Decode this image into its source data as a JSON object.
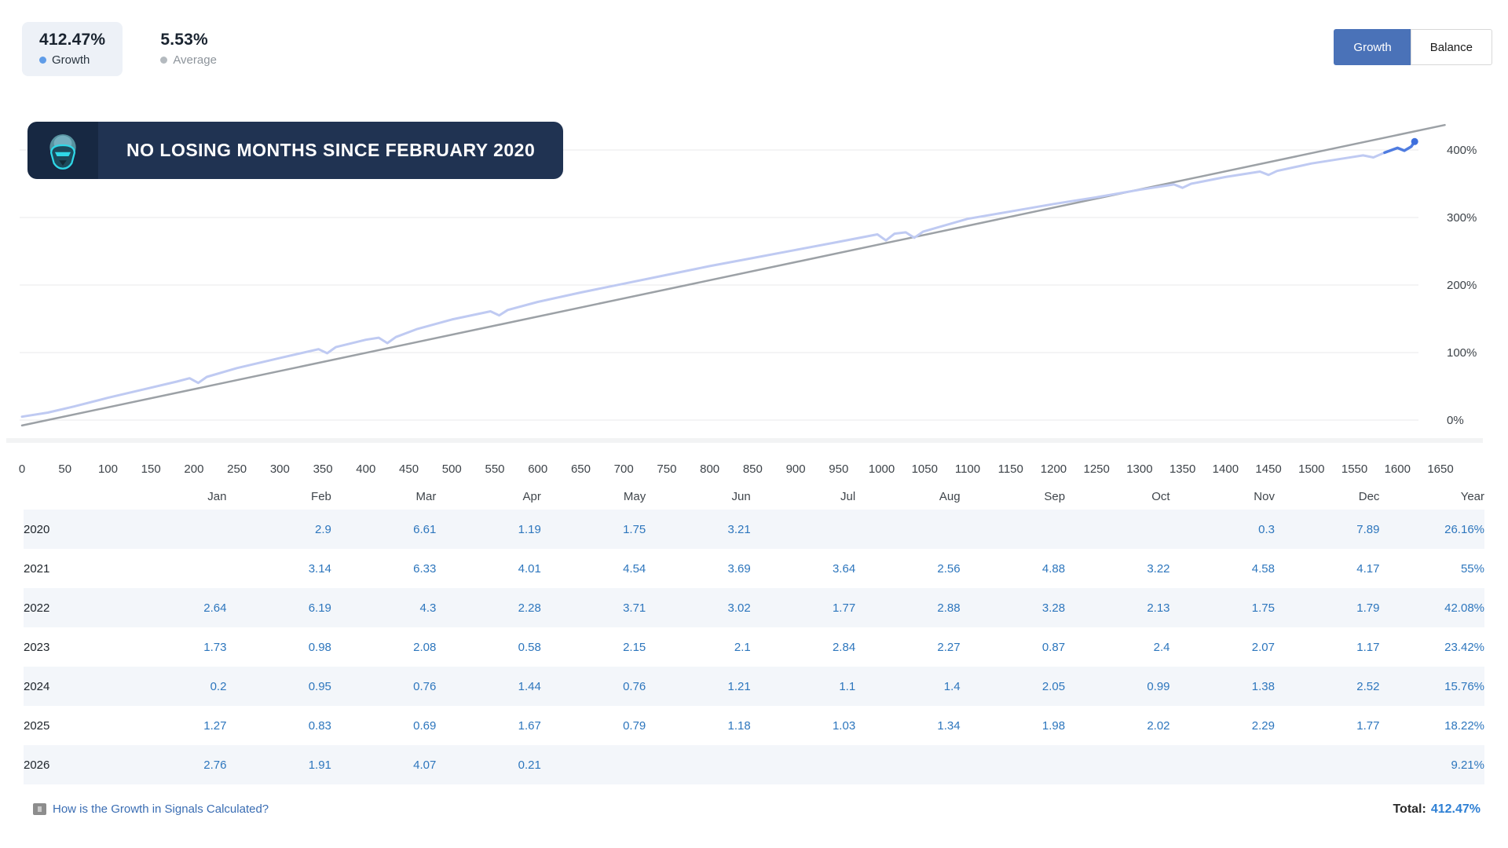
{
  "stats": {
    "growth": {
      "value": "412.47%",
      "label": "Growth"
    },
    "average": {
      "value": "5.53%",
      "label": "Average"
    }
  },
  "toggle": {
    "growth": "Growth",
    "balance": "Balance"
  },
  "banner": {
    "text": "NO LOSING MONTHS SINCE FEBRUARY 2020"
  },
  "chart_data": {
    "type": "line",
    "title": "Signal growth curve",
    "xlim": [
      0,
      1650
    ],
    "ylim": [
      0,
      440
    ],
    "grid": true,
    "y_axis_side": "right",
    "x_ticks": [
      0,
      50,
      100,
      150,
      200,
      250,
      300,
      350,
      400,
      450,
      500,
      550,
      600,
      650,
      700,
      750,
      800,
      850,
      900,
      950,
      1000,
      1050,
      1100,
      1150,
      1200,
      1250,
      1300,
      1350,
      1400,
      1450,
      1500,
      1550,
      1600,
      1650
    ],
    "y_ticks": [
      {
        "value": 0,
        "label": "0%"
      },
      {
        "value": 100,
        "label": "100%"
      },
      {
        "value": 200,
        "label": "200%"
      },
      {
        "value": 300,
        "label": "300%"
      },
      {
        "value": 400,
        "label": "400%"
      }
    ],
    "series": [
      {
        "name": "Trend",
        "color": "#9ca1a6",
        "width": 2.5,
        "points": [
          [
            0,
            -8
          ],
          [
            1655,
            437
          ]
        ]
      },
      {
        "name": "Growth",
        "color": "#bfcaf2",
        "width": 3,
        "points": [
          [
            0,
            5
          ],
          [
            30,
            11
          ],
          [
            60,
            20
          ],
          [
            100,
            33
          ],
          [
            140,
            45
          ],
          [
            180,
            57
          ],
          [
            195,
            62
          ],
          [
            205,
            55
          ],
          [
            215,
            64
          ],
          [
            250,
            77
          ],
          [
            300,
            92
          ],
          [
            345,
            105
          ],
          [
            355,
            99
          ],
          [
            365,
            108
          ],
          [
            400,
            119
          ],
          [
            415,
            122
          ],
          [
            425,
            114
          ],
          [
            435,
            123
          ],
          [
            460,
            135
          ],
          [
            500,
            149
          ],
          [
            545,
            161
          ],
          [
            555,
            155
          ],
          [
            565,
            163
          ],
          [
            600,
            175
          ],
          [
            650,
            189
          ],
          [
            700,
            202
          ],
          [
            750,
            215
          ],
          [
            800,
            228
          ],
          [
            850,
            240
          ],
          [
            900,
            252
          ],
          [
            950,
            264
          ],
          [
            995,
            275
          ],
          [
            1005,
            266
          ],
          [
            1015,
            276
          ],
          [
            1028,
            278
          ],
          [
            1038,
            270
          ],
          [
            1048,
            279
          ],
          [
            1100,
            298
          ],
          [
            1150,
            309
          ],
          [
            1200,
            320
          ],
          [
            1250,
            330
          ],
          [
            1300,
            341
          ],
          [
            1340,
            349
          ],
          [
            1350,
            344
          ],
          [
            1360,
            350
          ],
          [
            1400,
            360
          ],
          [
            1440,
            368
          ],
          [
            1450,
            363
          ],
          [
            1460,
            369
          ],
          [
            1500,
            380
          ],
          [
            1540,
            388
          ],
          [
            1560,
            392
          ],
          [
            1572,
            389
          ],
          [
            1585,
            396
          ],
          [
            1600,
            403
          ],
          [
            1608,
            399
          ],
          [
            1616,
            405
          ],
          [
            1620,
            412.47
          ]
        ]
      },
      {
        "name": "Growth-tip",
        "color": "#4f7ce0",
        "width": 3.5,
        "points": [
          [
            1585,
            396
          ],
          [
            1600,
            403
          ],
          [
            1608,
            399
          ],
          [
            1616,
            405
          ],
          [
            1620,
            412.47
          ]
        ]
      }
    ],
    "end_marker": {
      "x": 1620,
      "y": 412.47,
      "color": "#3e6fdd"
    }
  },
  "table": {
    "months": [
      "Jan",
      "Feb",
      "Mar",
      "Apr",
      "May",
      "Jun",
      "Jul",
      "Aug",
      "Sep",
      "Oct",
      "Nov",
      "Dec"
    ],
    "year_header": "Year",
    "rows": [
      {
        "year": "2020",
        "months": [
          "",
          "2.9",
          "6.61",
          "1.19",
          "1.75",
          "3.21",
          "",
          "",
          "",
          "",
          "0.3",
          "7.89"
        ],
        "total": "26.16%"
      },
      {
        "year": "2021",
        "months": [
          "",
          "3.14",
          "6.33",
          "4.01",
          "4.54",
          "3.69",
          "3.64",
          "2.56",
          "4.88",
          "3.22",
          "4.58",
          "4.17"
        ],
        "total": "55%"
      },
      {
        "year": "2022",
        "months": [
          "2.64",
          "6.19",
          "4.3",
          "2.28",
          "3.71",
          "3.02",
          "1.77",
          "2.88",
          "3.28",
          "2.13",
          "1.75",
          "1.79"
        ],
        "total": "42.08%"
      },
      {
        "year": "2023",
        "months": [
          "1.73",
          "0.98",
          "2.08",
          "0.58",
          "2.15",
          "2.1",
          "2.84",
          "2.27",
          "0.87",
          "2.4",
          "2.07",
          "1.17"
        ],
        "total": "23.42%"
      },
      {
        "year": "2024",
        "months": [
          "0.2",
          "0.95",
          "0.76",
          "1.44",
          "0.76",
          "1.21",
          "1.1",
          "1.4",
          "2.05",
          "0.99",
          "1.38",
          "2.52"
        ],
        "total": "15.76%"
      },
      {
        "year": "2025",
        "months": [
          "1.27",
          "0.83",
          "0.69",
          "1.67",
          "0.79",
          "1.18",
          "1.03",
          "1.34",
          "1.98",
          "2.02",
          "2.29",
          "1.77"
        ],
        "total": "18.22%"
      },
      {
        "year": "2026",
        "months": [
          "2.76",
          "1.91",
          "4.07",
          "0.21",
          "",
          "",
          "",
          "",
          "",
          "",
          "",
          ""
        ],
        "total": "9.21%"
      }
    ]
  },
  "footer": {
    "link": "How is the Growth in Signals Calculated?",
    "total_label": "Total:",
    "total_value": "412.47%"
  }
}
